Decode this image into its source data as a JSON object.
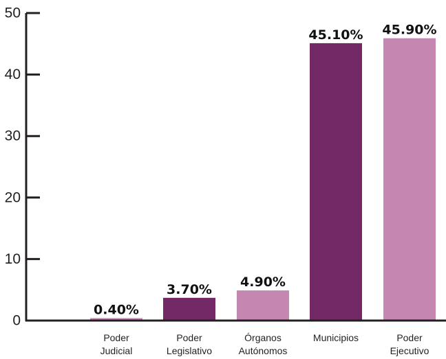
{
  "chart_data": {
    "type": "bar",
    "title": "",
    "xlabel": "",
    "ylabel": "",
    "ylim": [
      0,
      50
    ],
    "yticks": [
      0,
      10,
      20,
      30,
      40,
      50
    ],
    "grid": false,
    "categories": [
      [
        "Poder",
        "Judicial"
      ],
      [
        "Poder",
        "Legislativo"
      ],
      [
        "Órganos",
        "Autónomos"
      ],
      [
        "Municipios"
      ],
      [
        "Poder",
        "Ejecutivo"
      ]
    ],
    "values": [
      0.4,
      3.7,
      4.9,
      45.1,
      45.9
    ],
    "value_labels": [
      "0.40%",
      "3.70%",
      "4.90%",
      "45.10%",
      "45.90%"
    ],
    "colors": [
      "#c586b2",
      "#722966",
      "#c586b2",
      "#722966",
      "#c586b2"
    ],
    "axis_color": "#231f20"
  }
}
